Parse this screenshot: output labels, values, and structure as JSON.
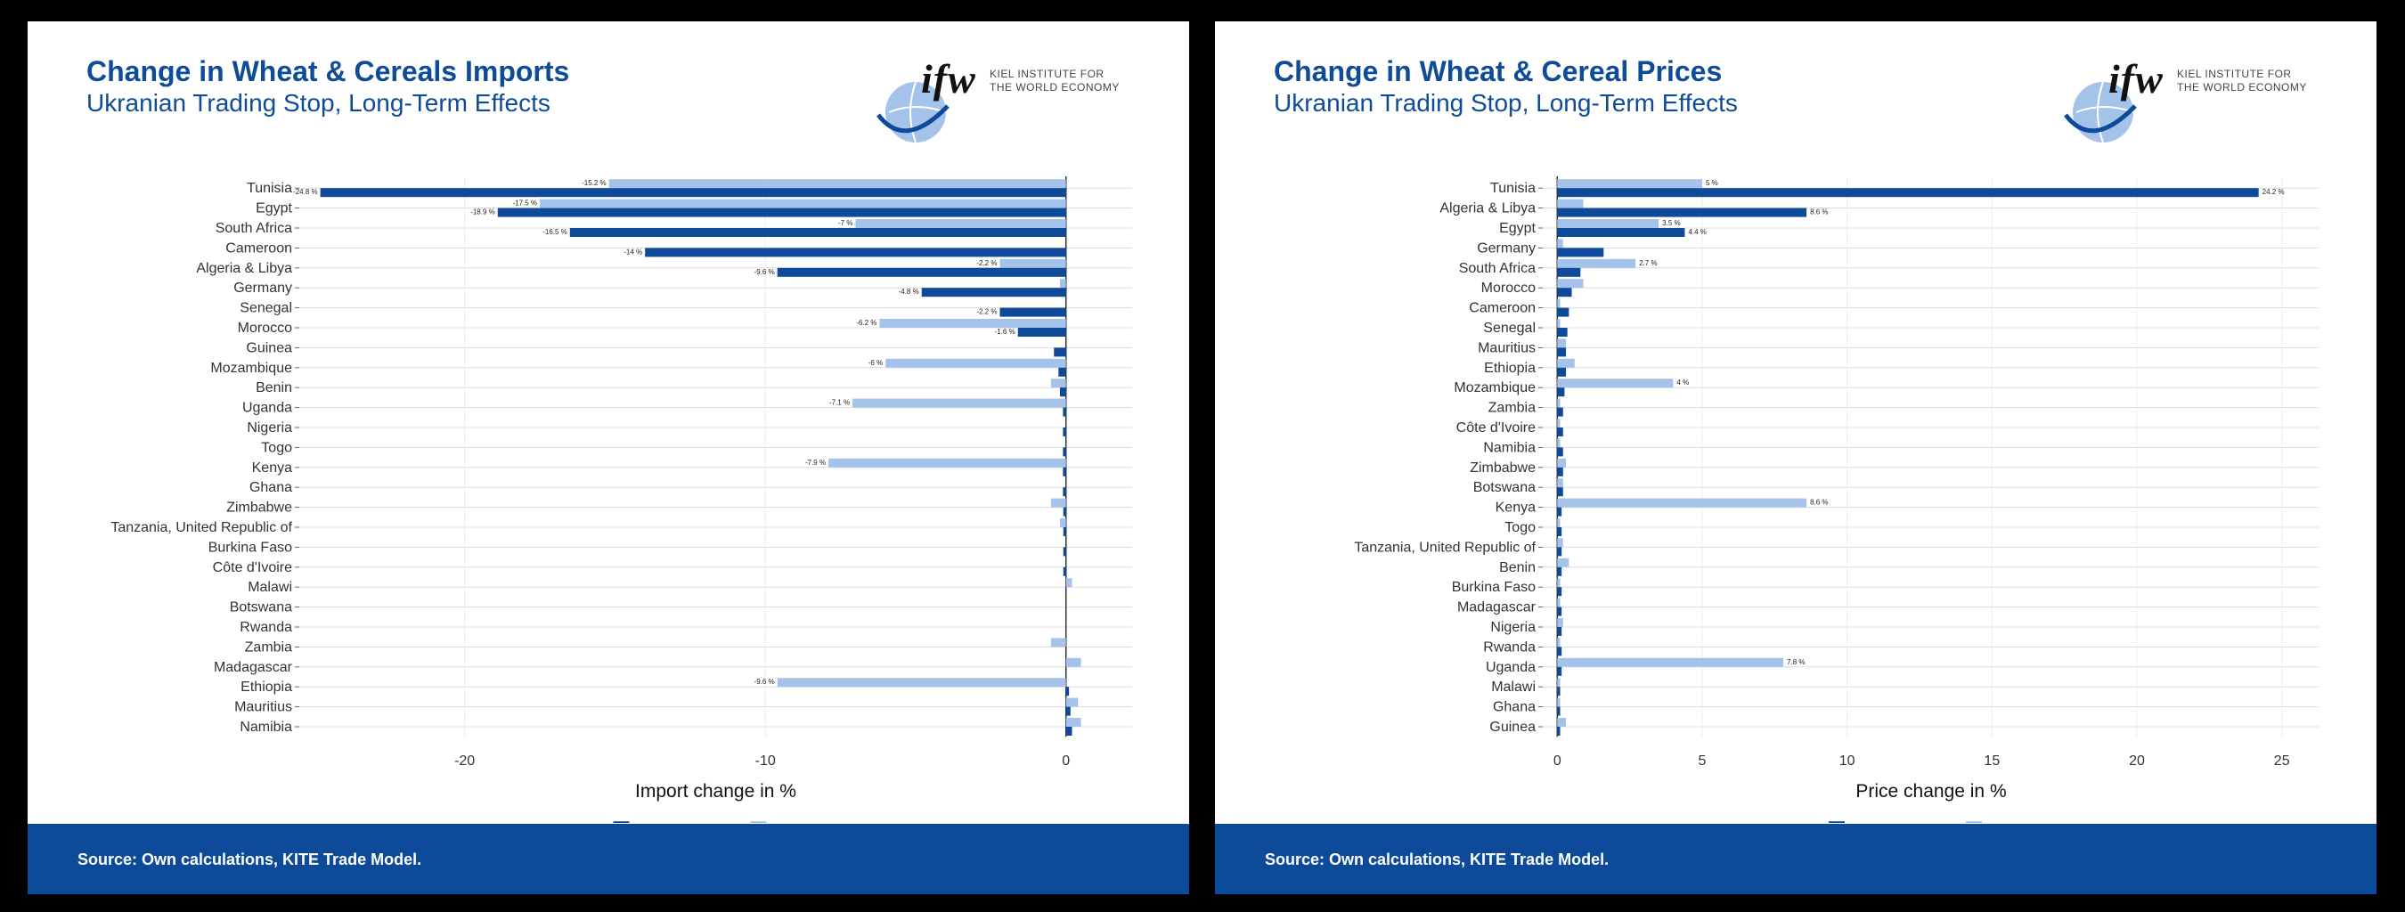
{
  "chart_data": [
    {
      "type": "bar",
      "orientation": "horizontal",
      "title": "Change in Wheat & Cereals Imports",
      "subtitle": "Ukranian Trading Stop, Long-Term Effects",
      "xlabel": "Import change in %",
      "xlim": [
        -25.5,
        2.2
      ],
      "xticks": [
        -20,
        -10,
        0
      ],
      "grid": true,
      "legend_position": "bottom",
      "categories": [
        "Tunisia",
        "Egypt",
        "South Africa",
        "Cameroon",
        "Algeria & Libya",
        "Germany",
        "Senegal",
        "Morocco",
        "Guinea",
        "Mozambique",
        "Benin",
        "Uganda",
        "Nigeria",
        "Togo",
        "Kenya",
        "Ghana",
        "Zimbabwe",
        "Tanzania, United Republic of",
        "Burkina Faso",
        "Côte d'Ivoire",
        "Malawi",
        "Botswana",
        "Rwanda",
        "Zambia",
        "Madagascar",
        "Ethiopia",
        "Mauritius",
        "Namibia"
      ],
      "series": [
        {
          "name": "Other cereals",
          "color": "#0d4a99",
          "values": [
            -24.8,
            -18.9,
            -16.5,
            -14,
            -9.6,
            -4.8,
            -2.2,
            -1.6,
            -0.4,
            -0.25,
            -0.2,
            -0.1,
            -0.1,
            -0.1,
            -0.1,
            -0.1,
            -0.05,
            -0.05,
            -0.05,
            -0.05,
            0,
            0,
            0,
            0,
            0,
            0.1,
            0.15,
            0.2
          ],
          "labels": [
            "-24.8 %",
            "-18.9 %",
            "-16.5 %",
            "-14 %",
            "-9.6 %",
            "-4.8 %",
            "-2.2 %",
            "-1.6 %",
            "",
            "",
            "",
            "",
            "",
            "",
            "",
            "",
            "",
            "",
            "",
            "",
            "",
            "",
            "",
            "",
            "",
            "",
            "",
            ""
          ]
        },
        {
          "name": "Wheat",
          "color": "#a5c3ea",
          "values": [
            -15.2,
            -17.5,
            -7,
            0,
            -2.2,
            -0.2,
            0,
            -6.2,
            0,
            -6,
            -0.5,
            -7.1,
            0,
            0,
            -7.9,
            0,
            -0.5,
            -0.2,
            0,
            0,
            0.2,
            0,
            0,
            -0.5,
            0.5,
            -9.6,
            0.4,
            0.5
          ],
          "labels": [
            "-15.2 %",
            "-17.5 %",
            "-7 %",
            "",
            "-2.2 %",
            "",
            "",
            "-6.2 %",
            "",
            "-6 %",
            "",
            "-7.1 %",
            "",
            "",
            "-7.9 %",
            "",
            "",
            "",
            "",
            "",
            "",
            "",
            "",
            "",
            "",
            "-9.6 %",
            "",
            ""
          ]
        }
      ]
    },
    {
      "type": "bar",
      "orientation": "horizontal",
      "title": "Change in Wheat & Cereal Prices",
      "subtitle": "Ukranian Trading Stop, Long-Term Effects",
      "xlabel": "Price change in %",
      "xlim": [
        -0.5,
        26.3
      ],
      "xticks": [
        0,
        5,
        10,
        15,
        20,
        25
      ],
      "grid": true,
      "legend_position": "bottom",
      "categories": [
        "Tunisia",
        "Algeria & Libya",
        "Egypt",
        "Germany",
        "South Africa",
        "Morocco",
        "Cameroon",
        "Senegal",
        "Mauritius",
        "Ethiopia",
        "Mozambique",
        "Zambia",
        "Côte d'Ivoire",
        "Namibia",
        "Zimbabwe",
        "Botswana",
        "Kenya",
        "Togo",
        "Tanzania, United Republic of",
        "Benin",
        "Burkina Faso",
        "Madagascar",
        "Nigeria",
        "Rwanda",
        "Uganda",
        "Malawi",
        "Ghana",
        "Guinea"
      ],
      "series": [
        {
          "name": "Other cereals",
          "color": "#0d4a99",
          "values": [
            24.2,
            8.6,
            4.4,
            1.6,
            0.8,
            0.5,
            0.4,
            0.35,
            0.3,
            0.3,
            0.25,
            0.2,
            0.2,
            0.2,
            0.2,
            0.2,
            0.15,
            0.15,
            0.15,
            0.15,
            0.15,
            0.15,
            0.15,
            0.15,
            0.15,
            0.1,
            0.1,
            0.1
          ],
          "labels": [
            "24.2 %",
            "8.6 %",
            "4.4 %",
            "",
            "",
            "",
            "",
            "",
            "",
            "",
            "",
            "",
            "",
            "",
            "",
            "",
            "",
            "",
            "",
            "",
            "",
            "",
            "",
            "",
            "",
            "",
            "",
            ""
          ]
        },
        {
          "name": "Wheat",
          "color": "#a5c3ea",
          "values": [
            5,
            0.9,
            3.5,
            0.2,
            2.7,
            0.9,
            0.1,
            0.1,
            0.3,
            0.6,
            4,
            0.1,
            0.1,
            0.1,
            0.3,
            0.2,
            8.6,
            0.1,
            0.2,
            0.4,
            0.1,
            0.1,
            0.2,
            0.1,
            7.8,
            0.1,
            0.1,
            0.3
          ],
          "labels": [
            "5 %",
            "",
            "3.5 %",
            "",
            "2.7 %",
            "",
            "",
            "",
            "",
            "",
            "4 %",
            "",
            "",
            "",
            "",
            "",
            "8.6 %",
            "",
            "",
            "",
            "",
            "",
            "",
            "",
            "7.8 %",
            "",
            "",
            ""
          ]
        }
      ]
    }
  ],
  "panels": [
    {
      "title": "Change in Wheat & Cereals Imports",
      "subtitle": "Ukranian Trading Stop, Long-Term Effects",
      "footer": "Source: Own calculations, KITE Trade Model."
    },
    {
      "title": "Change in Wheat & Cereal Prices",
      "subtitle": "Ukranian Trading Stop, Long-Term Effects",
      "footer": "Source: Own calculations, KITE Trade Model."
    }
  ],
  "logo": {
    "wordmark": "ifw",
    "institute_line1": "KIEL INSTITUTE FOR",
    "institute_line2": "THE WORLD ECONOMY",
    "institute_bold": "KIEL"
  },
  "legend": {
    "items": [
      "Other cereals",
      "Wheat"
    ]
  }
}
